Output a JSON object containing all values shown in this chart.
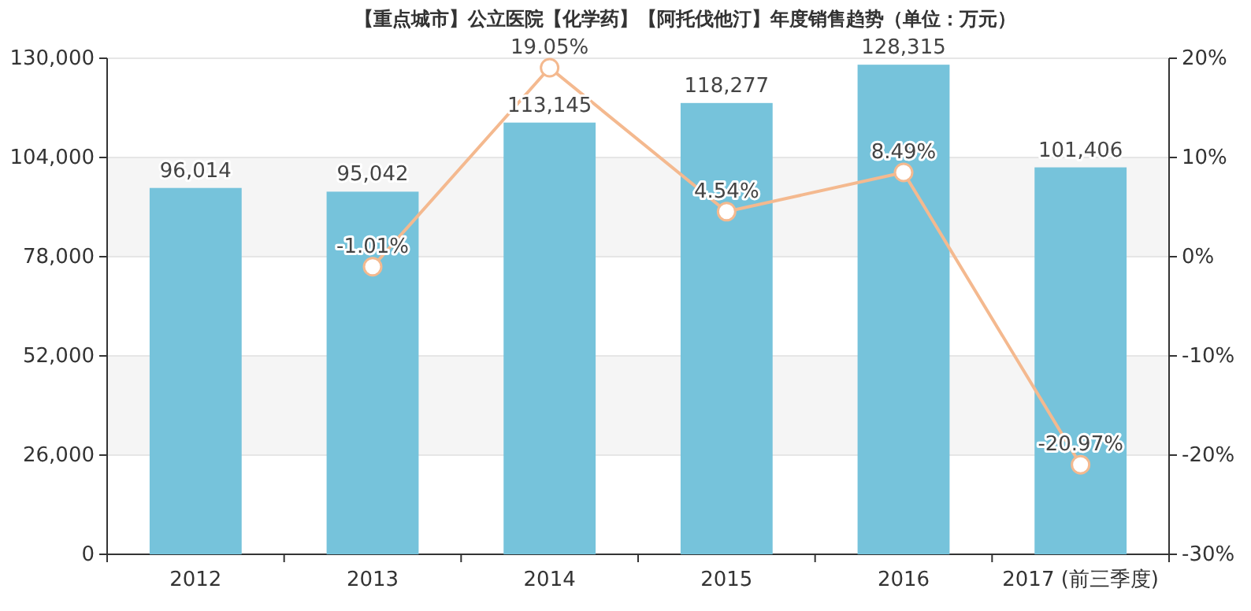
{
  "chart_data": {
    "type": "bar",
    "title": "【重点城市】公立医院【化学药】【阿托伐他汀】年度销售趋势（单位：万元）",
    "categories": [
      "2012",
      "2013",
      "2014",
      "2015",
      "2016",
      "2017 (前三季度)"
    ],
    "series": [
      {
        "color": "#76c3db",
        "values": [
          96014,
          95042,
          113145,
          118277,
          128315,
          101406
        ],
        "value_labels": [
          "96,014",
          "95,042",
          "113,145",
          "118,277",
          "128,315",
          "101,406"
        ]
      },
      {
        "type": "line",
        "axis": "y2",
        "color": "#f4b98f",
        "marker": "circle",
        "values": [
          null,
          -1.01,
          19.05,
          4.54,
          8.49,
          -20.97
        ],
        "value_labels": [
          null,
          "-1.01%",
          "19.05%",
          "4.54%",
          "8.49%",
          "-20.97%"
        ]
      }
    ],
    "ylim": [
      0,
      130000
    ],
    "yticks": [
      {
        "value": 0,
        "label": "0"
      },
      {
        "value": 26000,
        "label": "26,000"
      },
      {
        "value": 52000,
        "label": "52,000"
      },
      {
        "value": 78000,
        "label": "78,000"
      },
      {
        "value": 104000,
        "label": "104,000"
      },
      {
        "value": 130000,
        "label": "130,000"
      }
    ],
    "y2lim": [
      -30,
      20
    ],
    "y2ticks": [
      {
        "value": -30,
        "label": "-30%"
      },
      {
        "value": -20,
        "label": "-20%"
      },
      {
        "value": -10,
        "label": "-10%"
      },
      {
        "value": 0,
        "label": "0%"
      },
      {
        "value": 10,
        "label": "10%"
      },
      {
        "value": 20,
        "label": "20%"
      }
    ],
    "grid": "y"
  }
}
